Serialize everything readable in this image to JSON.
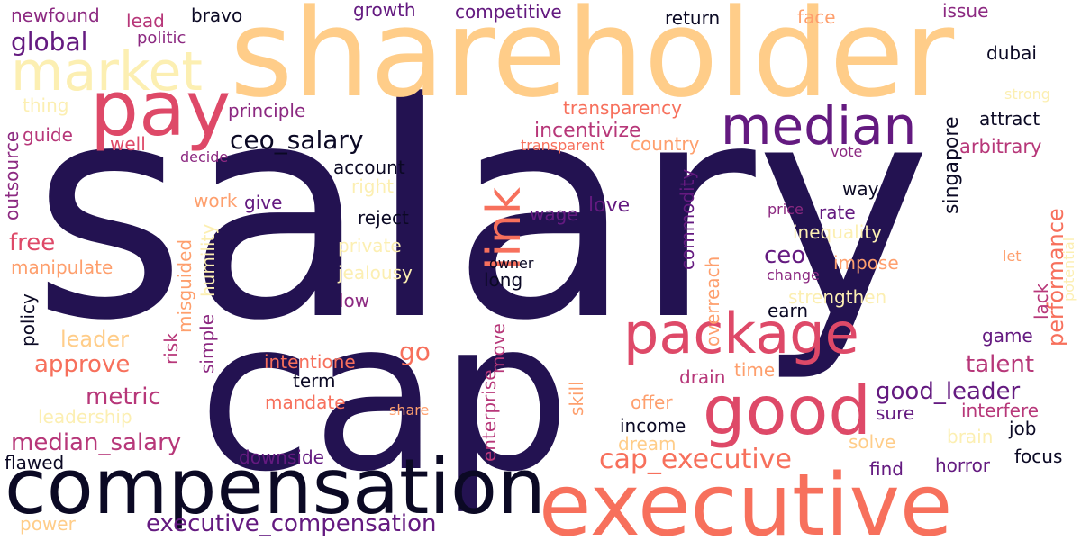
{
  "palette": {
    "deep": "#231251",
    "black": "#0b0924",
    "purple": "#641a80",
    "magenta": "#8c2981",
    "rose": "#b73779",
    "red": "#de4968",
    "coral": "#f7705c",
    "orange": "#fe9f6d",
    "peach": "#ffcd89",
    "cream": "#fcefb2"
  },
  "words": [
    {
      "text": "salary",
      "color": "deep"
    },
    {
      "text": "shareholder",
      "color": "peach"
    },
    {
      "text": "cap",
      "color": "deep"
    },
    {
      "text": "compensation",
      "color": "black"
    },
    {
      "text": "executive",
      "color": "coral"
    },
    {
      "text": "pay",
      "color": "red"
    },
    {
      "text": "market",
      "color": "cream"
    },
    {
      "text": "median",
      "color": "purple"
    },
    {
      "text": "package",
      "color": "red"
    },
    {
      "text": "good",
      "color": "red"
    },
    {
      "text": "link",
      "color": "coral"
    },
    {
      "text": "ceo_salary",
      "color": "black"
    },
    {
      "text": "global",
      "color": "purple"
    },
    {
      "text": "newfound",
      "color": "magenta"
    },
    {
      "text": "lead",
      "color": "rose"
    },
    {
      "text": "bravo",
      "color": "black"
    },
    {
      "text": "politic",
      "color": "magenta"
    },
    {
      "text": "growth",
      "color": "purple"
    },
    {
      "text": "competitive",
      "color": "purple"
    },
    {
      "text": "return",
      "color": "black"
    },
    {
      "text": "face",
      "color": "orange"
    },
    {
      "text": "issue",
      "color": "magenta"
    },
    {
      "text": "dubai",
      "color": "black"
    },
    {
      "text": "strong",
      "color": "cream"
    },
    {
      "text": "thing",
      "color": "cream"
    },
    {
      "text": "principle",
      "color": "magenta"
    },
    {
      "text": "transparency",
      "color": "coral"
    },
    {
      "text": "attract",
      "color": "black"
    },
    {
      "text": "guide",
      "color": "rose"
    },
    {
      "text": "incentivize",
      "color": "rose"
    },
    {
      "text": "singapore",
      "color": "black"
    },
    {
      "text": "arbitrary",
      "color": "rose"
    },
    {
      "text": "well",
      "color": "red"
    },
    {
      "text": "transparent",
      "color": "coral"
    },
    {
      "text": "country",
      "color": "orange"
    },
    {
      "text": "vote",
      "color": "magenta"
    },
    {
      "text": "decide",
      "color": "magenta"
    },
    {
      "text": "outsource",
      "color": "magenta"
    },
    {
      "text": "account",
      "color": "black"
    },
    {
      "text": "right",
      "color": "cream"
    },
    {
      "text": "way",
      "color": "black"
    },
    {
      "text": "performance",
      "color": "coral"
    },
    {
      "text": "potential",
      "color": "cream"
    },
    {
      "text": "work",
      "color": "orange"
    },
    {
      "text": "give",
      "color": "purple"
    },
    {
      "text": "reject",
      "color": "black"
    },
    {
      "text": "love",
      "color": "purple"
    },
    {
      "text": "wage",
      "color": "purple"
    },
    {
      "text": "commodity",
      "color": "purple"
    },
    {
      "text": "price",
      "color": "magenta"
    },
    {
      "text": "rate",
      "color": "purple"
    },
    {
      "text": "inequality",
      "color": "cream"
    },
    {
      "text": "free",
      "color": "red"
    },
    {
      "text": "private",
      "color": "cream"
    },
    {
      "text": "ceo",
      "color": "purple"
    },
    {
      "text": "let",
      "color": "orange"
    },
    {
      "text": "misguided",
      "color": "orange"
    },
    {
      "text": "humility",
      "color": "cream"
    },
    {
      "text": "manipulate",
      "color": "orange"
    },
    {
      "text": "owner",
      "color": "black"
    },
    {
      "text": "jealousy",
      "color": "cream"
    },
    {
      "text": "impose",
      "color": "orange"
    },
    {
      "text": "change",
      "color": "magenta"
    },
    {
      "text": "long",
      "color": "black"
    },
    {
      "text": "overreach",
      "color": "orange"
    },
    {
      "text": "policy",
      "color": "black"
    },
    {
      "text": "low",
      "color": "magenta"
    },
    {
      "text": "strengthen",
      "color": "cream"
    },
    {
      "text": "lack",
      "color": "rose"
    },
    {
      "text": "earn",
      "color": "black"
    },
    {
      "text": "leader",
      "color": "peach"
    },
    {
      "text": "risk",
      "color": "rose"
    },
    {
      "text": "simple",
      "color": "magenta"
    },
    {
      "text": "approve",
      "color": "coral"
    },
    {
      "text": "go",
      "color": "coral"
    },
    {
      "text": "move",
      "color": "rose"
    },
    {
      "text": "enterprise",
      "color": "rose"
    },
    {
      "text": "game",
      "color": "purple"
    },
    {
      "text": "talent",
      "color": "rose"
    },
    {
      "text": "intentione",
      "color": "coral"
    },
    {
      "text": "drain",
      "color": "rose"
    },
    {
      "text": "time",
      "color": "orange"
    },
    {
      "text": "skill",
      "color": "orange"
    },
    {
      "text": "metric",
      "color": "rose"
    },
    {
      "text": "term",
      "color": "black"
    },
    {
      "text": "good_leader",
      "color": "purple"
    },
    {
      "text": "offer",
      "color": "orange"
    },
    {
      "text": "mandate",
      "color": "coral"
    },
    {
      "text": "interfere",
      "color": "rose"
    },
    {
      "text": "sure",
      "color": "purple"
    },
    {
      "text": "leadership",
      "color": "cream"
    },
    {
      "text": "share",
      "color": "orange"
    },
    {
      "text": "income",
      "color": "black"
    },
    {
      "text": "job",
      "color": "black"
    },
    {
      "text": "median_salary",
      "color": "rose"
    },
    {
      "text": "dream",
      "color": "peach"
    },
    {
      "text": "solve",
      "color": "peach"
    },
    {
      "text": "brain",
      "color": "cream"
    },
    {
      "text": "downside",
      "color": "purple"
    },
    {
      "text": "flawed",
      "color": "black"
    },
    {
      "text": "cap_executive",
      "color": "coral"
    },
    {
      "text": "focus",
      "color": "black"
    },
    {
      "text": "find",
      "color": "purple"
    },
    {
      "text": "horror",
      "color": "purple"
    },
    {
      "text": "power",
      "color": "peach"
    },
    {
      "text": "executive_compensation",
      "color": "purple"
    }
  ]
}
